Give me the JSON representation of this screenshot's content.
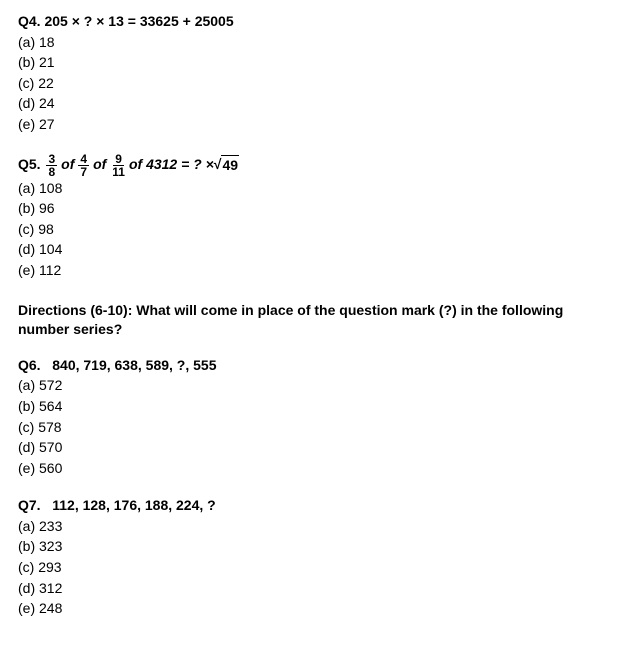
{
  "q4": {
    "label": "Q4.",
    "text": " 205 × ? × 13 = 33625 + 25005",
    "options": {
      "a": "(a) 18",
      "b": "(b) 21",
      "c": "(c) 22",
      "d": "(d) 24",
      "e": "(e) 27"
    }
  },
  "q5": {
    "label": "Q5.",
    "frac1": {
      "num": "3",
      "den": "8"
    },
    "of1": "of",
    "frac2": {
      "num": "4",
      "den": "7"
    },
    "of2": "of",
    "frac3": {
      "num": "9",
      "den": "11"
    },
    "rest": " of 4312 = ? × ",
    "sqrt_radicand": "49",
    "options": {
      "a": "(a) 108",
      "b": "(b) 96",
      "c": "(c) 98",
      "d": "(d) 104",
      "e": "(e) 112"
    }
  },
  "directions": "Directions (6-10): What will come in place of the question mark (?) in the following number series?",
  "q6": {
    "label": "Q6.",
    "text": "   840, 719, 638, 589, ?, 555",
    "options": {
      "a": "(a) 572",
      "b": "(b) 564",
      "c": "(c) 578",
      "d": "(d) 570",
      "e": "(e) 560"
    }
  },
  "q7": {
    "label": "Q7.",
    "text": "   112, 128, 176, 188, 224, ?",
    "options": {
      "a": "(a) 233",
      "b": "(b) 323",
      "c": "(c) 293",
      "d": "(d) 312",
      "e": "(e) 248"
    }
  }
}
